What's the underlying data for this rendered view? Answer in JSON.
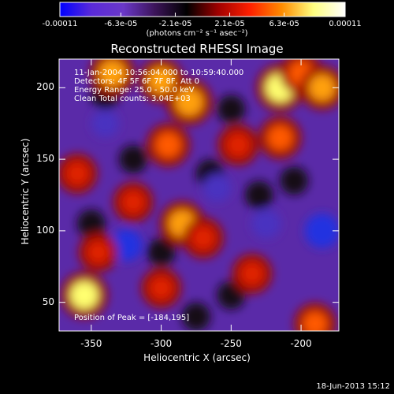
{
  "chart_data": {
    "type": "heatmap",
    "title": "Reconstructed RHESSI Image",
    "xlabel": "Heliocentric X (arcsec)",
    "ylabel": "Heliocentric Y (arcsec)",
    "xlim": [
      -373,
      -173
    ],
    "ylim": [
      30,
      220
    ],
    "xticks": [
      -350,
      -300,
      -250,
      -200
    ],
    "xtick_labels": [
      "-350",
      "-300",
      "-250",
      "-200"
    ],
    "yticks": [
      50,
      100,
      150,
      200
    ],
    "ytick_labels": [
      "50",
      "100",
      "150",
      "200"
    ],
    "colorbar": {
      "range": [
        -0.00011,
        0.00011
      ],
      "tick_values": [
        -0.00011,
        -6.3e-05,
        -2.1e-05,
        2.1e-05,
        6.3e-05,
        0.00011
      ],
      "tick_labels": [
        "-0.00011",
        "-6.3e-05",
        "-2.1e-05",
        "2.1e-05",
        "6.3e-05",
        "0.00011"
      ],
      "unit_label": "(photons cm⁻² s⁻¹ asec⁻²)",
      "colormap": [
        "#0000ff",
        "#5a2ad8",
        "#6a38c8",
        "#3c145a",
        "#000000",
        "#a00000",
        "#ff2000",
        "#ff8c00",
        "#ffff80",
        "#ffffff"
      ]
    },
    "annotations": [
      "11-Jan-2004 10:56:04.000 to 10:59:40.000",
      "Detectors: 4F 5F 6F 7F 8F, Att 0",
      "Energy Range: 25.0 - 50.0 keV",
      "Clean     Total counts: 3.04E+03"
    ],
    "peak_label": "Position of Peak = [-184,195]",
    "peak": [
      -184,
      195
    ],
    "bright_sources": [
      {
        "x": -335,
        "y": 210,
        "level": 0.85
      },
      {
        "x": -300,
        "y": 205,
        "level": 0.8
      },
      {
        "x": -280,
        "y": 190,
        "level": 0.9
      },
      {
        "x": -215,
        "y": 200,
        "level": 1.0
      },
      {
        "x": -200,
        "y": 210,
        "level": 0.7
      },
      {
        "x": -185,
        "y": 200,
        "level": 0.8
      },
      {
        "x": -295,
        "y": 160,
        "level": 0.75
      },
      {
        "x": -245,
        "y": 160,
        "level": 0.6
      },
      {
        "x": -215,
        "y": 165,
        "level": 0.7
      },
      {
        "x": -360,
        "y": 140,
        "level": 0.55
      },
      {
        "x": -285,
        "y": 105,
        "level": 0.85
      },
      {
        "x": -270,
        "y": 95,
        "level": 0.6
      },
      {
        "x": -320,
        "y": 120,
        "level": 0.55
      },
      {
        "x": -355,
        "y": 55,
        "level": 0.95
      },
      {
        "x": -300,
        "y": 60,
        "level": 0.55
      },
      {
        "x": -235,
        "y": 70,
        "level": 0.55
      },
      {
        "x": -190,
        "y": 35,
        "level": 0.65
      },
      {
        "x": -345,
        "y": 85,
        "level": 0.5
      }
    ],
    "negative_sources": [
      {
        "x": -185,
        "y": 100,
        "level": 1.0
      },
      {
        "x": -325,
        "y": 90,
        "level": 0.8
      },
      {
        "x": -225,
        "y": 105,
        "level": 0.6
      },
      {
        "x": -260,
        "y": 130,
        "level": 0.5
      },
      {
        "x": -340,
        "y": 175,
        "level": 0.45
      }
    ]
  },
  "footer_date": "18-Jun-2013 15:12"
}
